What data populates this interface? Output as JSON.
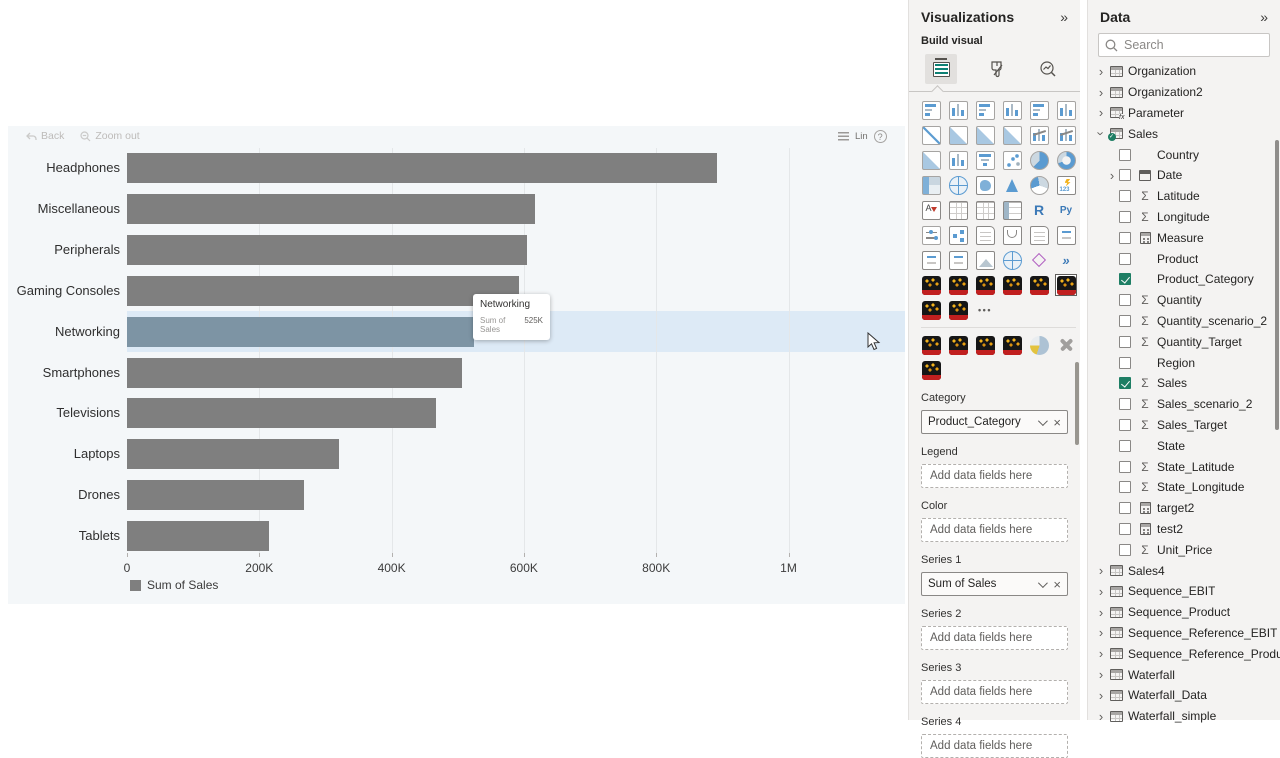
{
  "chart_data": {
    "type": "bar",
    "orientation": "horizontal",
    "title": "",
    "categories": [
      "Headphones",
      "Miscellaneous",
      "Peripherals",
      "Gaming Consoles",
      "Networking",
      "Smartphones",
      "Televisions",
      "Laptops",
      "Drones",
      "Tablets"
    ],
    "values": [
      892000,
      617000,
      604000,
      592000,
      525000,
      506000,
      467000,
      320000,
      268000,
      214000
    ],
    "series_name": "Sum of Sales",
    "xlabel": "",
    "ylabel": "",
    "xlim": [
      0,
      1000000
    ],
    "x_ticks": [
      {
        "label": "0",
        "value": 0
      },
      {
        "label": "200K",
        "value": 200000
      },
      {
        "label": "400K",
        "value": 400000
      },
      {
        "label": "600K",
        "value": 600000
      },
      {
        "label": "800K",
        "value": 800000
      },
      {
        "label": "1M",
        "value": 1000000
      }
    ],
    "highlight_index": 4,
    "legend_position": "bottom-left",
    "grid": true,
    "bar_color": "#7f7f7f",
    "highlight_bar_color": "#7d94a4",
    "highlight_row_color": "#ddeaf6"
  },
  "visual": {
    "toolbar": {
      "back": "Back",
      "zoom_out": "Zoom out"
    },
    "scale_label": "Lin",
    "legend_label": "Sum of Sales",
    "tooltip": {
      "title": "Networking",
      "label": "Sum of Sales",
      "value": "525K"
    }
  },
  "visualizations_pane": {
    "title": "Visualizations",
    "collapse_icon": "»",
    "build_visual_label": "Build visual",
    "tabs": [
      "build-visual",
      "format-visual",
      "analytics"
    ],
    "selected_tab": 0,
    "gallery_rows": [
      [
        "stacked-bar",
        "stacked-column",
        "clustered-bar",
        "clustered-column",
        "hundred-stacked-bar",
        "hundred-stacked-column"
      ],
      [
        "line",
        "area",
        "stacked-area",
        "hundred-stacked-area",
        "line-stacked-column",
        "line-clustered-column"
      ],
      [
        "ribbon",
        "waterfall",
        "funnel",
        "scatter",
        "pie",
        "donut"
      ],
      [
        "treemap",
        "map",
        "filled-map",
        "azure-map",
        "gauge",
        "kpi"
      ],
      [
        "card",
        "multi-row-card",
        "table",
        "matrix",
        "r-script",
        "python-script"
      ],
      [
        "slicer",
        "decomposition-tree",
        "smart-narrative",
        "metrics",
        "paginated-report",
        "power-automate"
      ],
      [
        "key-influencers",
        "qna",
        "image",
        "arcgis-map",
        "distribution",
        "power-apps"
      ],
      [
        "custom-visual",
        "custom-visual",
        "custom-visual",
        "custom-visual",
        "custom-visual",
        "custom-visual"
      ],
      [
        "custom-visual",
        "custom-visual",
        "more-options"
      ],
      "divider",
      [
        "custom-visual",
        "custom-visual",
        "custom-visual",
        "custom-visual",
        "custom-pie",
        "get-more-visuals"
      ],
      [
        "custom-visual"
      ]
    ],
    "selected_gallery_cell": {
      "row": 7,
      "col": 5
    },
    "wells": [
      {
        "label": "Category",
        "value": "Product_Category",
        "empty": false
      },
      {
        "label": "Legend",
        "placeholder": "Add data fields here",
        "empty": true
      },
      {
        "label": "Color",
        "placeholder": "Add data fields here",
        "empty": true
      },
      {
        "label": "Series 1",
        "value": "Sum of Sales",
        "empty": false
      },
      {
        "label": "Series 2",
        "placeholder": "Add data fields here",
        "empty": true
      },
      {
        "label": "Series 3",
        "placeholder": "Add data fields here",
        "empty": true
      },
      {
        "label": "Series 4",
        "placeholder": "Add data fields here",
        "empty": true
      }
    ]
  },
  "data_pane": {
    "title": "Data",
    "collapse_icon": "»",
    "search_placeholder": "Search",
    "tree": [
      {
        "label": "Organization",
        "level": 0,
        "chevron": "collapsed",
        "icon": "table",
        "checkbox": false,
        "checked": false
      },
      {
        "label": "Organization2",
        "level": 0,
        "chevron": "collapsed",
        "icon": "table",
        "checkbox": false,
        "checked": false
      },
      {
        "label": "Parameter",
        "level": 0,
        "chevron": "collapsed",
        "icon": "table-fx",
        "checkbox": false,
        "checked": false
      },
      {
        "label": "Sales",
        "level": 0,
        "chevron": "expanded",
        "icon": "table-check",
        "checkbox": false,
        "checked": false
      },
      {
        "label": "Country",
        "level": 1,
        "chevron": "none",
        "icon": "none",
        "checkbox": true,
        "checked": false
      },
      {
        "label": "Date",
        "level": 1,
        "chevron": "collapsed",
        "icon": "calendar",
        "checkbox": true,
        "checked": false
      },
      {
        "label": "Latitude",
        "level": 1,
        "chevron": "none",
        "icon": "sigma",
        "checkbox": true,
        "checked": false
      },
      {
        "label": "Longitude",
        "level": 1,
        "chevron": "none",
        "icon": "sigma",
        "checkbox": true,
        "checked": false
      },
      {
        "label": "Measure",
        "level": 1,
        "chevron": "none",
        "icon": "calc",
        "checkbox": true,
        "checked": false
      },
      {
        "label": "Product",
        "level": 1,
        "chevron": "none",
        "icon": "none",
        "checkbox": true,
        "checked": false
      },
      {
        "label": "Product_Category",
        "level": 1,
        "chevron": "none",
        "icon": "none",
        "checkbox": true,
        "checked": true
      },
      {
        "label": "Quantity",
        "level": 1,
        "chevron": "none",
        "icon": "sigma",
        "checkbox": true,
        "checked": false
      },
      {
        "label": "Quantity_scenario_2",
        "level": 1,
        "chevron": "none",
        "icon": "sigma",
        "checkbox": true,
        "checked": false
      },
      {
        "label": "Quantity_Target",
        "level": 1,
        "chevron": "none",
        "icon": "sigma",
        "checkbox": true,
        "checked": false
      },
      {
        "label": "Region",
        "level": 1,
        "chevron": "none",
        "icon": "none",
        "checkbox": true,
        "checked": false
      },
      {
        "label": "Sales",
        "level": 1,
        "chevron": "none",
        "icon": "sigma",
        "checkbox": true,
        "checked": true
      },
      {
        "label": "Sales_scenario_2",
        "level": 1,
        "chevron": "none",
        "icon": "sigma",
        "checkbox": true,
        "checked": false
      },
      {
        "label": "Sales_Target",
        "level": 1,
        "chevron": "none",
        "icon": "sigma",
        "checkbox": true,
        "checked": false
      },
      {
        "label": "State",
        "level": 1,
        "chevron": "none",
        "icon": "none",
        "checkbox": true,
        "checked": false
      },
      {
        "label": "State_Latitude",
        "level": 1,
        "chevron": "none",
        "icon": "sigma",
        "checkbox": true,
        "checked": false
      },
      {
        "label": "State_Longitude",
        "level": 1,
        "chevron": "none",
        "icon": "sigma",
        "checkbox": true,
        "checked": false
      },
      {
        "label": "target2",
        "level": 1,
        "chevron": "none",
        "icon": "calc",
        "checkbox": true,
        "checked": false
      },
      {
        "label": "test2",
        "level": 1,
        "chevron": "none",
        "icon": "calc",
        "checkbox": true,
        "checked": false
      },
      {
        "label": "Unit_Price",
        "level": 1,
        "chevron": "none",
        "icon": "sigma",
        "checkbox": true,
        "checked": false
      },
      {
        "label": "Sales4",
        "level": 0,
        "chevron": "collapsed",
        "icon": "table",
        "checkbox": false,
        "checked": false
      },
      {
        "label": "Sequence_EBIT",
        "level": 0,
        "chevron": "collapsed",
        "icon": "table",
        "checkbox": false,
        "checked": false
      },
      {
        "label": "Sequence_Product",
        "level": 0,
        "chevron": "collapsed",
        "icon": "table",
        "checkbox": false,
        "checked": false
      },
      {
        "label": "Sequence_Reference_EBIT",
        "level": 0,
        "chevron": "collapsed",
        "icon": "table",
        "checkbox": false,
        "checked": false
      },
      {
        "label": "Sequence_Reference_Product",
        "level": 0,
        "chevron": "collapsed",
        "icon": "table",
        "checkbox": false,
        "checked": false
      },
      {
        "label": "Waterfall",
        "level": 0,
        "chevron": "collapsed",
        "icon": "table",
        "checkbox": false,
        "checked": false
      },
      {
        "label": "Waterfall_Data",
        "level": 0,
        "chevron": "collapsed",
        "icon": "table",
        "checkbox": false,
        "checked": false
      },
      {
        "label": "Waterfall_simple",
        "level": 0,
        "chevron": "collapsed",
        "icon": "table",
        "checkbox": false,
        "checked": false
      }
    ]
  },
  "colors": {
    "pane_bg": "#f4f3f2",
    "accent_blue": "#5b9bd1",
    "checked_green": "#1e7e64",
    "build_tab_teal": "#0e8174"
  }
}
